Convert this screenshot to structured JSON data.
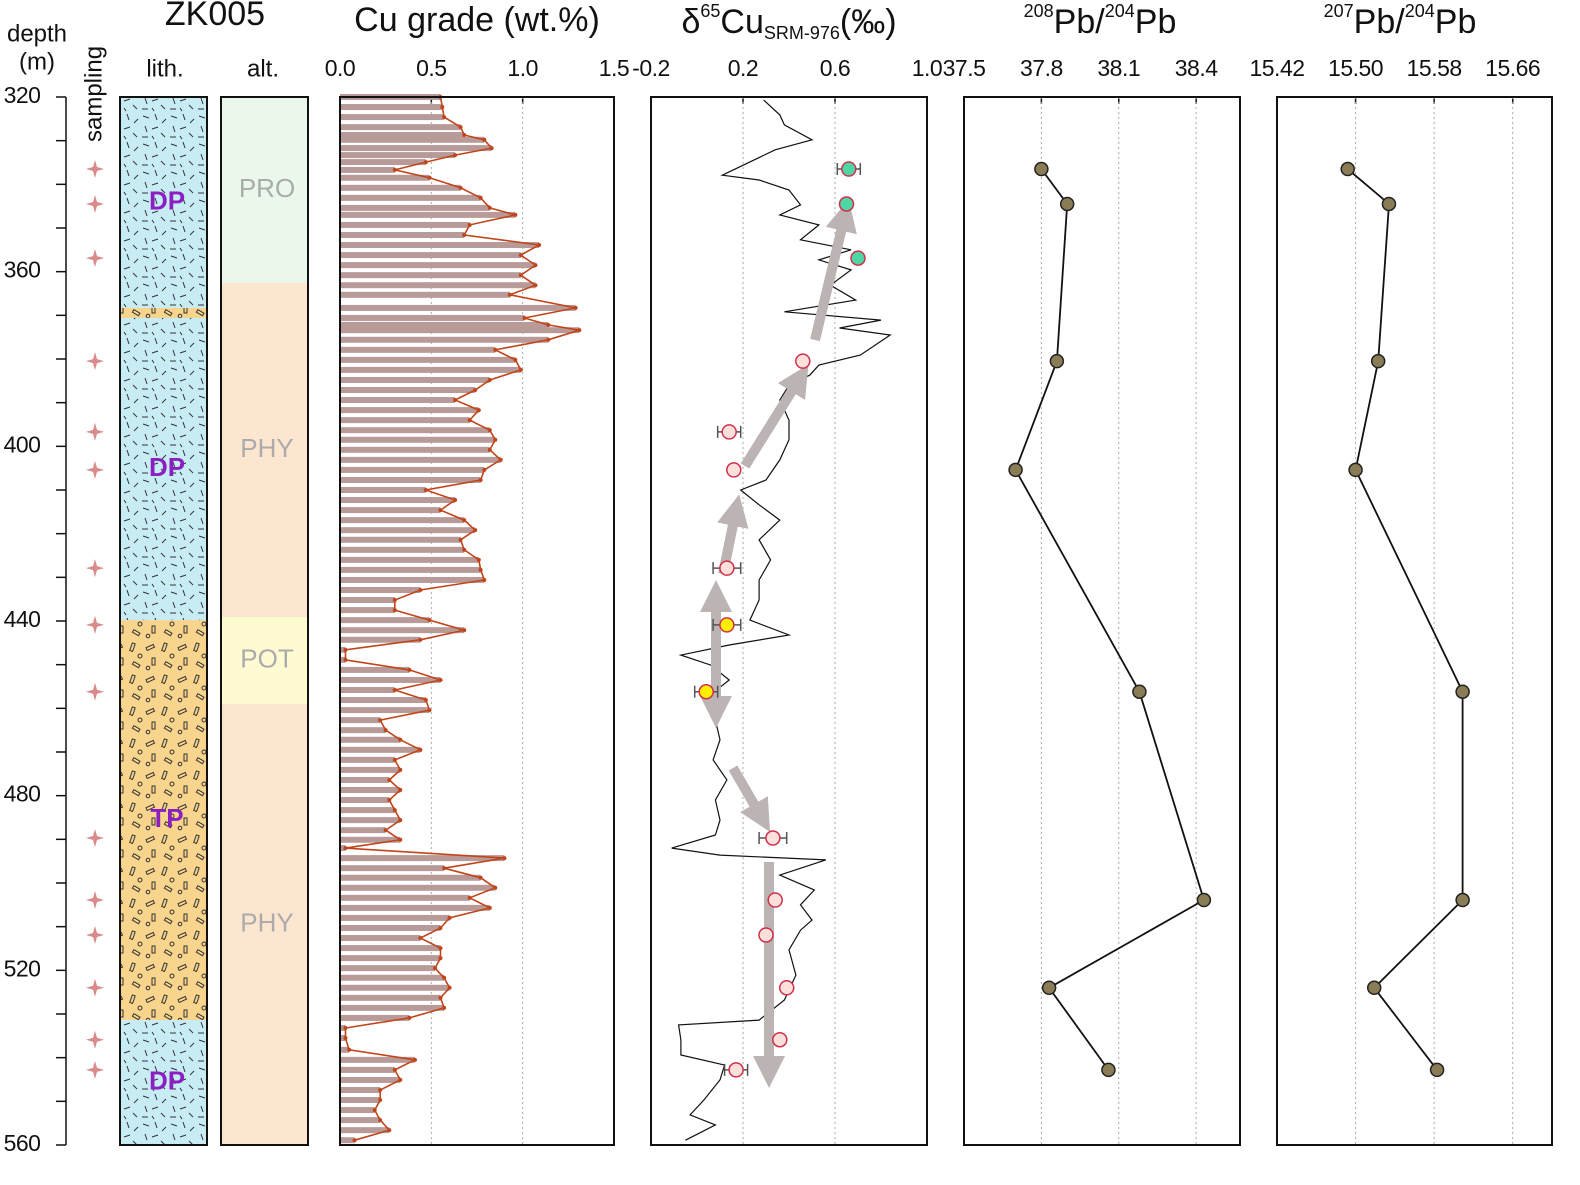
{
  "depth_axis": {
    "label_lines": [
      "depth",
      "(m)"
    ],
    "ylim": [
      320,
      560
    ],
    "yticks": [
      320,
      360,
      400,
      440,
      480,
      520,
      560
    ],
    "minor_yticks": [
      330,
      340,
      350,
      370,
      380,
      390,
      410,
      420,
      430,
      450,
      460,
      470,
      490,
      500,
      510,
      530,
      540,
      550
    ]
  },
  "sampling": {
    "label": "sampling",
    "color": "#d98b8b",
    "depths": [
      336.5,
      344.5,
      356.9,
      380.5,
      396.7,
      405.4,
      427.9,
      440.9,
      456.2,
      489.7,
      503.9,
      511.9,
      524.0,
      535.9,
      542.8
    ]
  },
  "lithology": {
    "title": "ZK005",
    "label": "lith.",
    "label_color": "#8b1fc2",
    "units": [
      {
        "name": "DP",
        "top": 320,
        "bottom": 368.3,
        "color": "#c8ecf4",
        "pattern": "dash"
      },
      {
        "top": 368.3,
        "bottom": 370.6,
        "color": "#f8d48c",
        "pattern": "block"
      },
      {
        "name": "DP",
        "top": 370.6,
        "bottom": 439.8,
        "color": "#c8ecf4",
        "pattern": "dash"
      },
      {
        "name": "TP",
        "top": 439.8,
        "bottom": 531.4,
        "color": "#f8d48c",
        "pattern": "block"
      },
      {
        "name": "DP",
        "top": 531.4,
        "bottom": 560,
        "color": "#c8ecf4",
        "pattern": "dash"
      }
    ]
  },
  "alteration": {
    "label": "alt.",
    "label_color": "#ababab",
    "zones": [
      {
        "name": "PRO",
        "top": 320,
        "bottom": 362.6,
        "color": "#eaf8ec"
      },
      {
        "name": "PHY",
        "top": 362.6,
        "bottom": 439.1,
        "color": "#fde6d0"
      },
      {
        "name": "POT",
        "top": 439.1,
        "bottom": 459.0,
        "color": "#fefbd3"
      },
      {
        "name": "PHY",
        "top": 459.0,
        "bottom": 560,
        "color": "#fde6d0"
      }
    ]
  },
  "chart_data": [
    {
      "type": "bar",
      "title": "Cu grade (wt.%)",
      "xlim": [
        0,
        1.5
      ],
      "xticks": [
        {
          "value": 0,
          "label": "0.0"
        },
        0.5,
        {
          "value": 1,
          "label": "1.0"
        },
        1.5
      ],
      "grid": true,
      "color": "#b89a98",
      "line_color": "#c1451b",
      "depths": [
        320.0,
        322.3,
        324.6,
        326.9,
        328.7,
        329.8,
        331.7,
        333.3,
        334.9,
        336.7,
        338.5,
        340.8,
        343.1,
        345.4,
        347.0,
        349.3,
        351.6,
        353.9,
        356.2,
        358.5,
        360.8,
        363.1,
        365.3,
        368.3,
        370.6,
        372.2,
        373.4,
        375.6,
        377.9,
        380.2,
        382.5,
        384.8,
        387.1,
        389.4,
        391.7,
        394.0,
        396.3,
        398.5,
        400.8,
        403.1,
        405.4,
        407.7,
        410.0,
        412.3,
        414.6,
        416.9,
        419.2,
        421.4,
        423.7,
        426.0,
        428.3,
        430.6,
        432.9,
        435.2,
        437.5,
        439.8,
        442.1,
        444.3,
        446.6,
        448.9,
        451.2,
        453.5,
        455.8,
        458.1,
        460.4,
        462.7,
        465.0,
        467.2,
        469.5,
        471.8,
        474.1,
        476.4,
        478.7,
        481.0,
        483.3,
        485.6,
        487.9,
        490.1,
        492.0,
        494.3,
        496.6,
        498.8,
        501.1,
        503.4,
        505.7,
        508.0,
        510.3,
        512.6,
        514.9,
        517.2,
        519.5,
        521.7,
        524.0,
        526.3,
        528.6,
        530.9,
        533.2,
        535.5,
        538.2,
        540.5,
        542.8,
        545.1,
        547.4,
        549.7,
        552.0,
        554.3,
        556.6,
        558.9
      ],
      "values": [
        0.55,
        0.56,
        0.57,
        0.66,
        0.68,
        0.79,
        0.83,
        0.63,
        0.47,
        0.3,
        0.49,
        0.66,
        0.77,
        0.82,
        0.96,
        0.71,
        0.68,
        1.09,
        0.99,
        1.07,
        0.99,
        1.07,
        0.93,
        1.29,
        1.01,
        1.14,
        1.31,
        1.14,
        0.85,
        0.96,
        0.99,
        0.82,
        0.74,
        0.63,
        0.76,
        0.71,
        0.82,
        0.85,
        0.82,
        0.88,
        0.79,
        0.77,
        0.47,
        0.63,
        0.55,
        0.68,
        0.74,
        0.66,
        0.68,
        0.76,
        0.77,
        0.79,
        0.44,
        0.3,
        0.3,
        0.49,
        0.68,
        0.44,
        0.03,
        0.03,
        0.38,
        0.55,
        0.3,
        0.47,
        0.49,
        0.22,
        0.25,
        0.33,
        0.44,
        0.3,
        0.33,
        0.27,
        0.33,
        0.27,
        0.3,
        0.33,
        0.25,
        0.33,
        0.03,
        0.9,
        0.57,
        0.77,
        0.85,
        0.71,
        0.82,
        0.6,
        0.55,
        0.44,
        0.55,
        0.55,
        0.52,
        0.57,
        0.6,
        0.55,
        0.57,
        0.38,
        0.03,
        0.03,
        0.05,
        0.41,
        0.3,
        0.33,
        0.22,
        0.22,
        0.19,
        0.22,
        0.27,
        0.08
      ]
    },
    {
      "type": "line",
      "title": {
        "prefix": "δ",
        "superscript": "65",
        "main": "Cu",
        "subscript": "SRM-976",
        "suffix": "(‰)"
      },
      "xlim": [
        -0.2,
        1.0
      ],
      "xticks": [
        -0.2,
        0.2,
        0.6,
        {
          "value": 1,
          "label": "1.0"
        }
      ],
      "grid": true,
      "color": "#111111",
      "depths": [
        320.7,
        324.1,
        326.4,
        329.8,
        332.1,
        337.9,
        339.0,
        341.3,
        344.7,
        347.0,
        349.3,
        352.7,
        355.0,
        357.3,
        359.6,
        363.1,
        366.5,
        369.2,
        371.1,
        372.9,
        374.5,
        379.1,
        381.4,
        383.7,
        386.0,
        389.4,
        394.0,
        398.5,
        403.1,
        407.7,
        410.0,
        413.4,
        416.9,
        421.4,
        426.0,
        430.6,
        435.2,
        439.8,
        443.2,
        445.5,
        447.8,
        450.1,
        453.5,
        458.1,
        462.7,
        467.2,
        471.8,
        476.4,
        481.0,
        485.6,
        489.0,
        492.0,
        493.6,
        494.7,
        498.2,
        501.6,
        505.0,
        508.5,
        510.8,
        515.3,
        521.1,
        526.8,
        531.4,
        532.5,
        536.0,
        539.4,
        541.7,
        545.1,
        549.7,
        553.1,
        555.4,
        558.9
      ],
      "values": [
        0.29,
        0.36,
        0.38,
        0.5,
        0.34,
        0.11,
        0.27,
        0.4,
        0.45,
        0.36,
        0.53,
        0.45,
        0.67,
        0.53,
        0.67,
        0.58,
        0.69,
        0.38,
        0.8,
        0.62,
        0.84,
        0.71,
        0.53,
        0.49,
        0.4,
        0.36,
        0.4,
        0.4,
        0.36,
        0.3,
        0.19,
        0.27,
        0.36,
        0.27,
        0.32,
        0.27,
        0.27,
        0.23,
        0.4,
        0.14,
        -0.07,
        0.06,
        0.14,
        0.03,
        0.08,
        0.1,
        0.07,
        0.13,
        0.08,
        0.1,
        0.08,
        -0.11,
        0.1,
        0.56,
        0.36,
        0.51,
        0.45,
        0.5,
        0.45,
        0.4,
        0.43,
        0.38,
        0.27,
        -0.08,
        -0.07,
        -0.07,
        0.12,
        0.1,
        0.03,
        -0.03,
        0.08,
        -0.05
      ],
      "samples": {
        "depths": [
          336.5,
          344.5,
          356.9,
          380.5,
          396.7,
          405.4,
          427.9,
          440.9,
          456.2,
          489.7,
          503.9,
          511.9,
          524.0,
          535.9,
          542.8
        ],
        "values": [
          0.66,
          0.65,
          0.7,
          0.46,
          0.14,
          0.16,
          0.13,
          0.13,
          0.04,
          0.33,
          0.34,
          0.3,
          0.39,
          0.36,
          0.17
        ],
        "errors": [
          0.05,
          null,
          null,
          null,
          0.05,
          null,
          0.06,
          0.06,
          0.05,
          0.06,
          null,
          null,
          null,
          null,
          0.05
        ],
        "colors": [
          "#4fd6a4",
          "#4fd6a4",
          "#4fd6a4",
          "#fde0dc",
          "#fde0dc",
          "#fde0dc",
          "#fde0dc",
          "#ffee00",
          "#ffee00",
          "#fde0dc",
          "#fde0dc",
          "#fde0dc",
          "#fde0dc",
          "#fde0dc",
          "#fde0dc"
        ],
        "edge_color": "#d0304a",
        "error_color": "#555555"
      }
    },
    {
      "type": "line",
      "title": {
        "superscript": "208",
        "main": "Pb/",
        "superscript2": "204",
        "suffix": "Pb"
      },
      "xlim": [
        37.5,
        38.57
      ],
      "xticks": [
        37.5,
        37.8,
        38.1,
        38.4
      ],
      "grid": true,
      "color": "#111111",
      "marker_color": "#8a7d55",
      "depths": [
        336.5,
        344.5,
        380.5,
        405.4,
        456.2,
        503.9,
        524.0,
        542.8
      ],
      "values": [
        37.8,
        37.9,
        37.86,
        37.7,
        38.18,
        38.43,
        37.83,
        38.06
      ]
    },
    {
      "type": "line",
      "title": {
        "superscript": "207",
        "main": "Pb/",
        "superscript2": "204",
        "suffix": "Pb"
      },
      "xlim": [
        15.42,
        15.7
      ],
      "xticks": [
        15.42,
        {
          "value": 15.5,
          "label": "15.50"
        },
        15.58,
        15.66
      ],
      "grid": true,
      "color": "#111111",
      "marker_color": "#8a7d55",
      "depths": [
        336.5,
        344.5,
        380.5,
        405.4,
        456.2,
        503.9,
        524.0,
        542.8
      ],
      "values": [
        15.492,
        15.534,
        15.523,
        15.5,
        15.609,
        15.609,
        15.519,
        15.583
      ]
    }
  ]
}
